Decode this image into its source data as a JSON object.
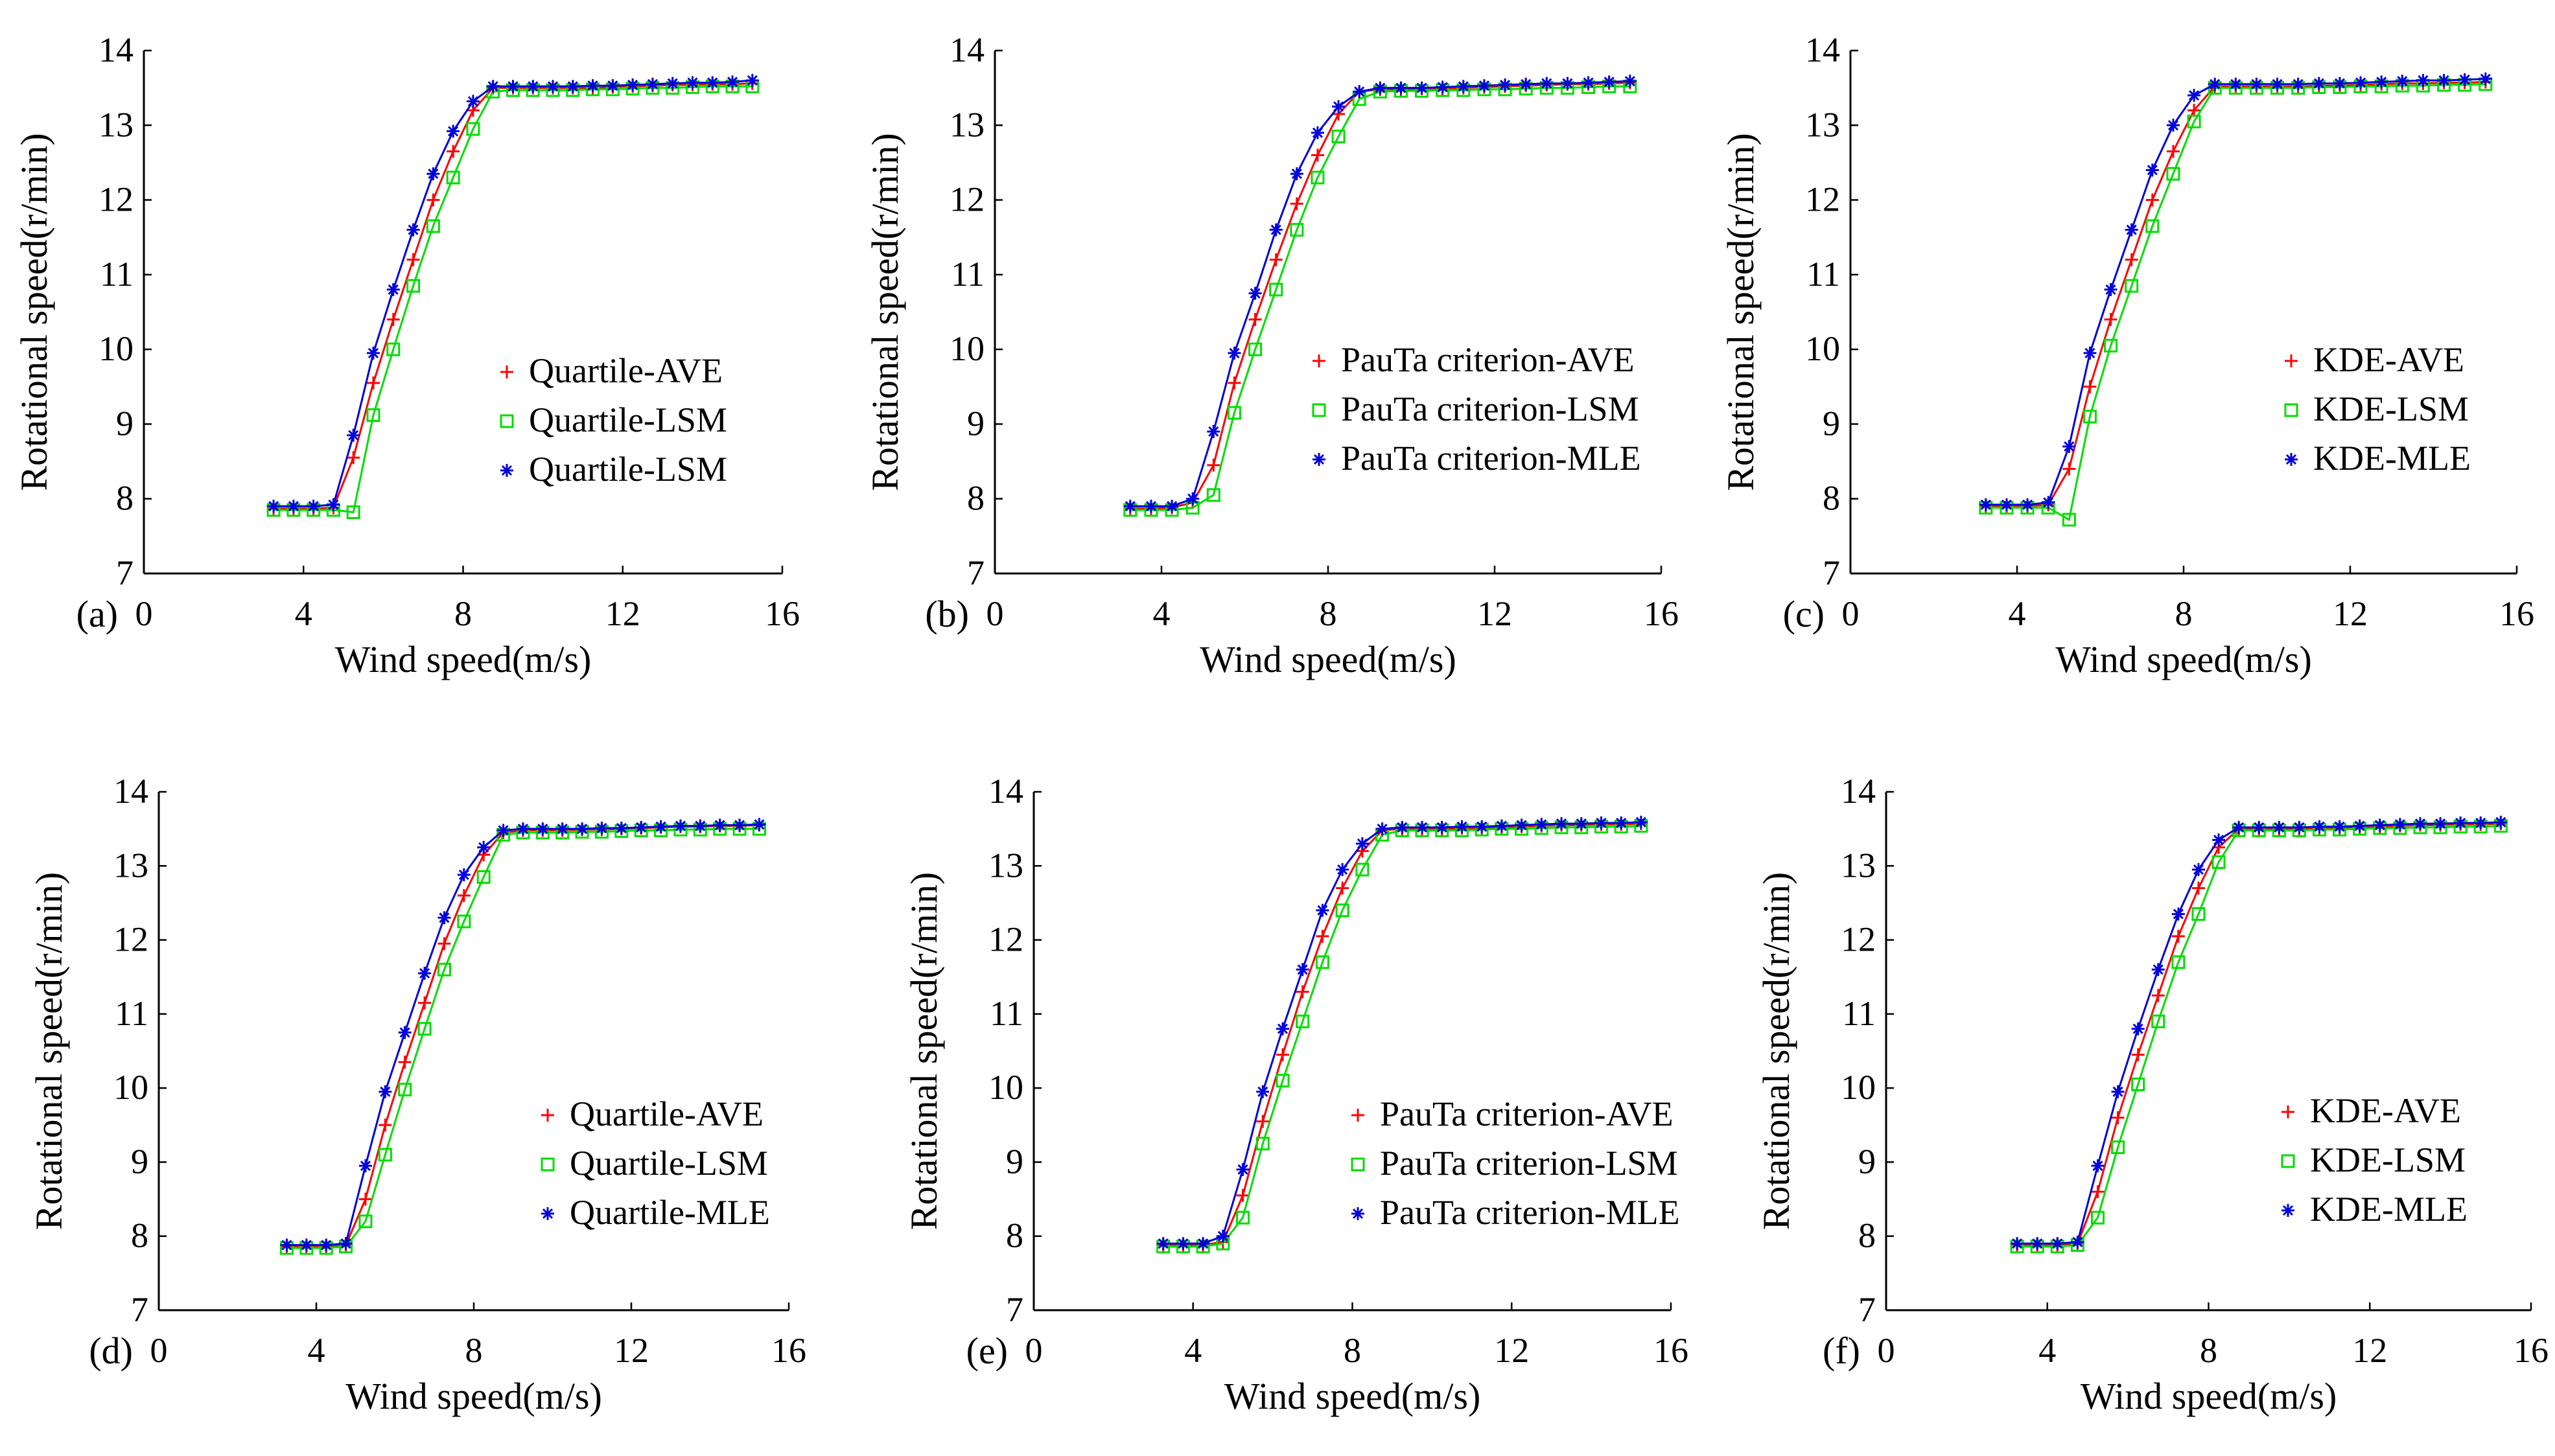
{
  "chart_data": [
    {
      "panel_label": "(a)",
      "type": "line",
      "xlabel": "Wind speed(m/s)",
      "ylabel": "Rotational speed(r/min)",
      "xlim": [
        0,
        16
      ],
      "ylim": [
        7,
        14
      ],
      "xticks": [
        0,
        4,
        8,
        12,
        16
      ],
      "yticks": [
        7,
        8,
        9,
        10,
        11,
        12,
        13,
        14
      ],
      "legend_position": "center-right",
      "x": [
        3.25,
        3.75,
        4.25,
        4.75,
        5.25,
        5.75,
        6.25,
        6.75,
        7.25,
        7.75,
        8.25,
        8.75,
        9.25,
        9.75,
        10.25,
        10.75,
        11.25,
        11.75,
        12.25,
        12.75,
        13.25,
        13.75,
        14.25,
        14.75,
        15.25
      ],
      "series": [
        {
          "name": "Quartile-AVE",
          "color": "#ff0000",
          "marker": "plus",
          "values": [
            7.87,
            7.87,
            7.87,
            7.88,
            8.55,
            9.55,
            10.4,
            11.2,
            12.0,
            12.65,
            13.2,
            13.5,
            13.5,
            13.5,
            13.5,
            13.5,
            13.5,
            13.51,
            13.52,
            13.53,
            13.54,
            13.54,
            13.55,
            13.55,
            13.56
          ]
        },
        {
          "name": "Quartile-LSM",
          "color": "#00dd00",
          "marker": "square",
          "values": [
            7.85,
            7.85,
            7.85,
            7.85,
            7.82,
            9.12,
            10.0,
            10.85,
            11.65,
            12.3,
            12.95,
            13.45,
            13.47,
            13.47,
            13.47,
            13.47,
            13.48,
            13.48,
            13.49,
            13.5,
            13.5,
            13.51,
            13.52,
            13.52,
            13.52
          ]
        },
        {
          "name": "Quartile-LSM",
          "color": "#0000dd",
          "marker": "star",
          "values": [
            7.9,
            7.9,
            7.9,
            7.92,
            8.85,
            9.95,
            10.8,
            11.6,
            12.35,
            12.92,
            13.32,
            13.52,
            13.52,
            13.52,
            13.52,
            13.52,
            13.53,
            13.53,
            13.54,
            13.55,
            13.56,
            13.57,
            13.57,
            13.58,
            13.6
          ]
        }
      ]
    },
    {
      "panel_label": "(b)",
      "type": "line",
      "xlabel": "Wind speed(m/s)",
      "ylabel": "Rotational speed(r/min)",
      "xlim": [
        0,
        16
      ],
      "ylim": [
        7,
        14
      ],
      "xticks": [
        0,
        4,
        8,
        12,
        16
      ],
      "yticks": [
        7,
        8,
        9,
        10,
        11,
        12,
        13,
        14
      ],
      "legend_position": "center-right",
      "x": [
        3.25,
        3.75,
        4.25,
        4.75,
        5.25,
        5.75,
        6.25,
        6.75,
        7.25,
        7.75,
        8.25,
        8.75,
        9.25,
        9.75,
        10.25,
        10.75,
        11.25,
        11.75,
        12.25,
        12.75,
        13.25,
        13.75,
        14.25,
        14.75,
        15.25
      ],
      "series": [
        {
          "name": "PauTa criterion-AVE",
          "color": "#ff0000",
          "marker": "plus",
          "values": [
            7.87,
            7.87,
            7.88,
            7.95,
            8.45,
            9.55,
            10.4,
            11.2,
            11.95,
            12.6,
            13.15,
            13.45,
            13.48,
            13.48,
            13.49,
            13.49,
            13.5,
            13.51,
            13.52,
            13.53,
            13.54,
            13.55,
            13.55,
            13.56,
            13.57
          ]
        },
        {
          "name": "PauTa criterion-LSM",
          "color": "#00dd00",
          "marker": "square",
          "values": [
            7.85,
            7.85,
            7.85,
            7.88,
            8.05,
            9.15,
            10.0,
            10.8,
            11.6,
            12.3,
            12.85,
            13.35,
            13.45,
            13.46,
            13.46,
            13.47,
            13.47,
            13.48,
            13.48,
            13.49,
            13.5,
            13.5,
            13.51,
            13.52,
            13.52
          ]
        },
        {
          "name": "PauTa criterion-MLE",
          "color": "#0000dd",
          "marker": "star",
          "values": [
            7.9,
            7.9,
            7.9,
            8.0,
            8.9,
            9.95,
            10.75,
            11.6,
            12.35,
            12.9,
            13.25,
            13.45,
            13.5,
            13.5,
            13.5,
            13.51,
            13.52,
            13.53,
            13.54,
            13.55,
            13.56,
            13.56,
            13.57,
            13.58,
            13.59
          ]
        }
      ]
    },
    {
      "panel_label": "(c)",
      "type": "line",
      "xlabel": "Wind speed(m/s)",
      "ylabel": "Rotational speed(r/min)",
      "xlim": [
        0,
        16
      ],
      "ylim": [
        7,
        14
      ],
      "xticks": [
        0,
        4,
        8,
        12,
        16
      ],
      "yticks": [
        7,
        8,
        9,
        10,
        11,
        12,
        13,
        14
      ],
      "legend_position": "center-right",
      "x": [
        3.25,
        3.75,
        4.25,
        4.75,
        5.25,
        5.75,
        6.25,
        6.75,
        7.25,
        7.75,
        8.25,
        8.75,
        9.25,
        9.75,
        10.25,
        10.75,
        11.25,
        11.75,
        12.25,
        12.75,
        13.25,
        13.75,
        14.25,
        14.75,
        15.25
      ],
      "series": [
        {
          "name": "KDE-AVE",
          "color": "#ff0000",
          "marker": "plus",
          "values": [
            7.9,
            7.9,
            7.9,
            7.92,
            8.4,
            9.5,
            10.4,
            11.2,
            12.0,
            12.65,
            13.2,
            13.52,
            13.52,
            13.52,
            13.52,
            13.52,
            13.53,
            13.53,
            13.54,
            13.55,
            13.56,
            13.56,
            13.57,
            13.57,
            13.58
          ]
        },
        {
          "name": "KDE-LSM",
          "color": "#00dd00",
          "marker": "square",
          "values": [
            7.88,
            7.88,
            7.88,
            7.88,
            7.72,
            9.1,
            10.05,
            10.85,
            11.65,
            12.35,
            13.05,
            13.5,
            13.5,
            13.5,
            13.5,
            13.5,
            13.51,
            13.51,
            13.52,
            13.52,
            13.53,
            13.53,
            13.54,
            13.54,
            13.55
          ]
        },
        {
          "name": "KDE-MLE",
          "color": "#0000dd",
          "marker": "star",
          "values": [
            7.92,
            7.92,
            7.92,
            7.95,
            8.7,
            9.95,
            10.8,
            11.6,
            12.4,
            13.0,
            13.4,
            13.55,
            13.55,
            13.55,
            13.55,
            13.55,
            13.56,
            13.56,
            13.57,
            13.58,
            13.59,
            13.6,
            13.6,
            13.61,
            13.62
          ]
        }
      ]
    },
    {
      "panel_label": "(d)",
      "type": "line",
      "xlabel": "Wind speed(m/s)",
      "ylabel": "Rotational speed(r/min)",
      "xlim": [
        0,
        16
      ],
      "ylim": [
        7,
        14
      ],
      "xticks": [
        0,
        4,
        8,
        12,
        16
      ],
      "yticks": [
        7,
        8,
        9,
        10,
        11,
        12,
        13,
        14
      ],
      "legend_position": "lower-right",
      "x": [
        3.25,
        3.75,
        4.25,
        4.75,
        5.25,
        5.75,
        6.25,
        6.75,
        7.25,
        7.75,
        8.25,
        8.75,
        9.25,
        9.75,
        10.25,
        10.75,
        11.25,
        11.75,
        12.25,
        12.75,
        13.25,
        13.75,
        14.25,
        14.75,
        15.25
      ],
      "series": [
        {
          "name": "Quartile-AVE",
          "color": "#ff0000",
          "marker": "plus",
          "values": [
            7.86,
            7.86,
            7.86,
            7.88,
            8.5,
            9.5,
            10.35,
            11.15,
            11.95,
            12.6,
            13.15,
            13.45,
            13.48,
            13.48,
            13.48,
            13.49,
            13.49,
            13.5,
            13.51,
            13.52,
            13.53,
            13.53,
            13.54,
            13.54,
            13.55
          ]
        },
        {
          "name": "Quartile-LSM",
          "color": "#00dd00",
          "marker": "square",
          "values": [
            7.84,
            7.84,
            7.84,
            7.86,
            8.2,
            9.1,
            9.98,
            10.8,
            11.6,
            12.25,
            12.85,
            13.42,
            13.45,
            13.45,
            13.45,
            13.46,
            13.46,
            13.47,
            13.48,
            13.48,
            13.49,
            13.49,
            13.5,
            13.5,
            13.5
          ]
        },
        {
          "name": "Quartile-MLE",
          "color": "#0000dd",
          "marker": "star",
          "values": [
            7.88,
            7.88,
            7.88,
            7.9,
            8.95,
            9.95,
            10.75,
            11.55,
            12.3,
            12.88,
            13.25,
            13.48,
            13.5,
            13.5,
            13.5,
            13.5,
            13.51,
            13.51,
            13.52,
            13.53,
            13.54,
            13.54,
            13.55,
            13.55,
            13.56
          ]
        }
      ]
    },
    {
      "panel_label": "(e)",
      "type": "line",
      "xlabel": "Wind speed(m/s)",
      "ylabel": "Rotational speed(r/min)",
      "xlim": [
        0,
        16
      ],
      "ylim": [
        7,
        14
      ],
      "xticks": [
        0,
        4,
        8,
        12,
        16
      ],
      "yticks": [
        7,
        8,
        9,
        10,
        11,
        12,
        13,
        14
      ],
      "legend_position": "lower-right",
      "x": [
        3.25,
        3.75,
        4.25,
        4.75,
        5.25,
        5.75,
        6.25,
        6.75,
        7.25,
        7.75,
        8.25,
        8.75,
        9.25,
        9.75,
        10.25,
        10.75,
        11.25,
        11.75,
        12.25,
        12.75,
        13.25,
        13.75,
        14.25,
        14.75,
        15.25
      ],
      "series": [
        {
          "name": "PauTa criterion-AVE",
          "color": "#ff0000",
          "marker": "plus",
          "values": [
            7.88,
            7.88,
            7.88,
            7.92,
            8.55,
            9.55,
            10.45,
            11.3,
            12.05,
            12.7,
            13.2,
            13.48,
            13.5,
            13.5,
            13.5,
            13.51,
            13.51,
            13.52,
            13.53,
            13.54,
            13.55,
            13.55,
            13.56,
            13.56,
            13.57
          ]
        },
        {
          "name": "PauTa criterion-LSM",
          "color": "#00dd00",
          "marker": "square",
          "values": [
            7.86,
            7.86,
            7.86,
            7.9,
            8.25,
            9.25,
            10.1,
            10.9,
            11.7,
            12.4,
            12.95,
            13.42,
            13.48,
            13.48,
            13.48,
            13.48,
            13.49,
            13.5,
            13.5,
            13.51,
            13.52,
            13.52,
            13.53,
            13.53,
            13.54
          ]
        },
        {
          "name": "PauTa criterion-MLE",
          "color": "#0000dd",
          "marker": "star",
          "values": [
            7.9,
            7.9,
            7.9,
            8.0,
            8.9,
            9.95,
            10.8,
            11.6,
            12.4,
            12.95,
            13.3,
            13.5,
            13.52,
            13.52,
            13.52,
            13.53,
            13.53,
            13.54,
            13.55,
            13.56,
            13.57,
            13.57,
            13.58,
            13.58,
            13.59
          ]
        }
      ]
    },
    {
      "panel_label": "(f)",
      "type": "line",
      "xlabel": "Wind speed(m/s)",
      "ylabel": "Rotational speed(r/min)",
      "xlim": [
        0,
        16
      ],
      "ylim": [
        7,
        14
      ],
      "xticks": [
        0,
        4,
        8,
        12,
        16
      ],
      "yticks": [
        7,
        8,
        9,
        10,
        11,
        12,
        13,
        14
      ],
      "legend_position": "lower-right",
      "x": [
        3.25,
        3.75,
        4.25,
        4.75,
        5.25,
        5.75,
        6.25,
        6.75,
        7.25,
        7.75,
        8.25,
        8.75,
        9.25,
        9.75,
        10.25,
        10.75,
        11.25,
        11.75,
        12.25,
        12.75,
        13.25,
        13.75,
        14.25,
        14.75,
        15.25
      ],
      "series": [
        {
          "name": "KDE-AVE",
          "color": "#ff0000",
          "marker": "plus",
          "values": [
            7.88,
            7.88,
            7.88,
            7.9,
            8.6,
            9.6,
            10.45,
            11.25,
            12.05,
            12.7,
            13.25,
            13.5,
            13.5,
            13.5,
            13.5,
            13.51,
            13.51,
            13.52,
            13.53,
            13.54,
            13.55,
            13.55,
            13.56,
            13.56,
            13.57
          ]
        },
        {
          "name": "KDE-LSM",
          "color": "#00dd00",
          "marker": "square",
          "values": [
            7.86,
            7.86,
            7.86,
            7.88,
            8.25,
            9.2,
            10.05,
            10.9,
            11.7,
            12.35,
            13.05,
            13.48,
            13.48,
            13.48,
            13.48,
            13.49,
            13.49,
            13.5,
            13.51,
            13.51,
            13.52,
            13.52,
            13.53,
            13.53,
            13.54
          ]
        },
        {
          "name": "KDE-MLE",
          "color": "#0000dd",
          "marker": "star",
          "values": [
            7.9,
            7.9,
            7.9,
            7.92,
            8.95,
            9.95,
            10.8,
            11.6,
            12.35,
            12.95,
            13.35,
            13.52,
            13.52,
            13.52,
            13.52,
            13.53,
            13.53,
            13.54,
            13.55,
            13.56,
            13.57,
            13.57,
            13.58,
            13.58,
            13.59
          ]
        }
      ]
    }
  ]
}
